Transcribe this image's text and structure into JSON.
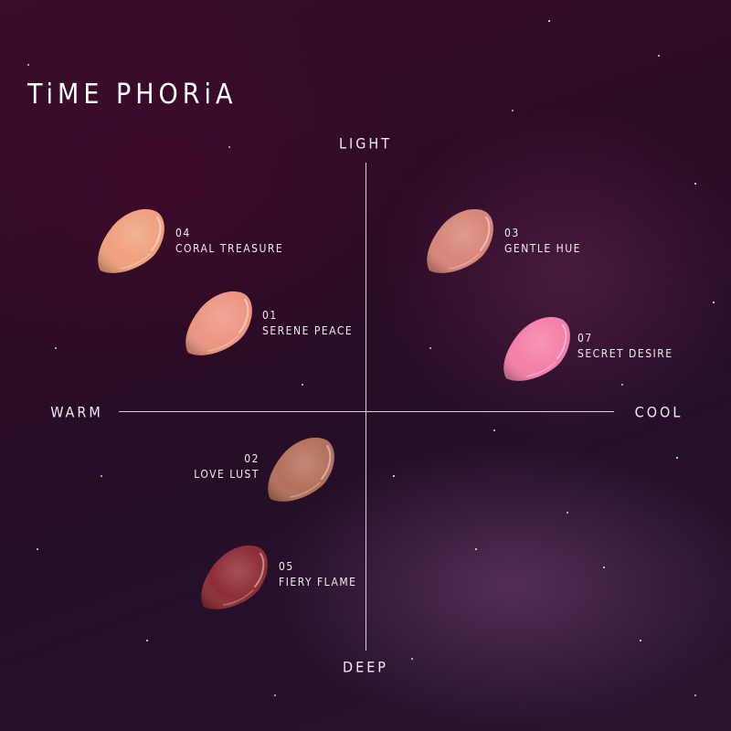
{
  "brand": "TiME PHORiA",
  "axes": {
    "top": "LIGHT",
    "bottom": "DEEP",
    "left": "WARM",
    "right": "COOL"
  },
  "shades": [
    {
      "number": "04",
      "name": "CORAL TREASURE",
      "color": "#f0a07e",
      "quadrant": "light-warm"
    },
    {
      "number": "03",
      "name": "GENTLE HUE",
      "color": "#d8857a",
      "quadrant": "light-cool"
    },
    {
      "number": "01",
      "name": "SERENE PEACE",
      "color": "#ec9582",
      "quadrant": "light-warm"
    },
    {
      "number": "07",
      "name": "SECRET DESIRE",
      "color": "#f47fa8",
      "quadrant": "light-cool"
    },
    {
      "number": "02",
      "name": "LOVE LUST",
      "color": "#b3705a",
      "quadrant": "deep-warm"
    },
    {
      "number": "05",
      "name": "FIERY FLAME",
      "color": "#8e2c35",
      "quadrant": "deep-warm"
    }
  ]
}
